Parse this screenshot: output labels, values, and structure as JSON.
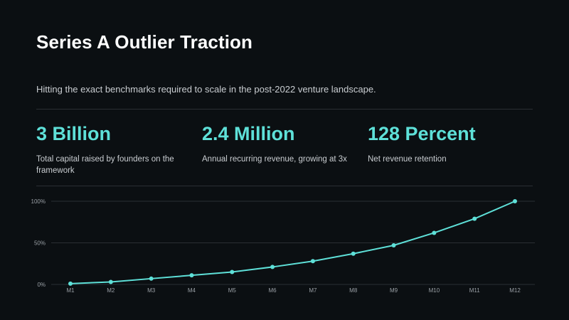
{
  "header": {
    "title": "Series A Outlier Traction",
    "subtitle": "Hitting the exact benchmarks required to scale in the post-2022 venture landscape."
  },
  "stats": [
    {
      "value": "3 Billion",
      "label": "Total capital raised by founders on the framework"
    },
    {
      "value": "2.4 Million",
      "label": "Annual recurring revenue, growing at 3x"
    },
    {
      "value": "128 Percent",
      "label": "Net revenue retention"
    }
  ],
  "colors": {
    "accent": "#5ee0d8",
    "background": "#0b0f12",
    "grid": "#2a2f34"
  },
  "chart_data": {
    "type": "line",
    "x": [
      "M1",
      "M2",
      "M3",
      "M4",
      "M5",
      "M6",
      "M7",
      "M8",
      "M9",
      "M10",
      "M11",
      "M12"
    ],
    "series": [
      {
        "values": [
          1,
          3,
          7,
          11,
          15,
          21,
          28,
          37,
          47,
          62,
          79,
          100
        ]
      }
    ],
    "ylim": [
      0,
      100
    ],
    "yticks": [
      0,
      50,
      100
    ],
    "ytick_labels": [
      "0%",
      "50%",
      "100%"
    ],
    "grid": true,
    "legend": "none"
  }
}
